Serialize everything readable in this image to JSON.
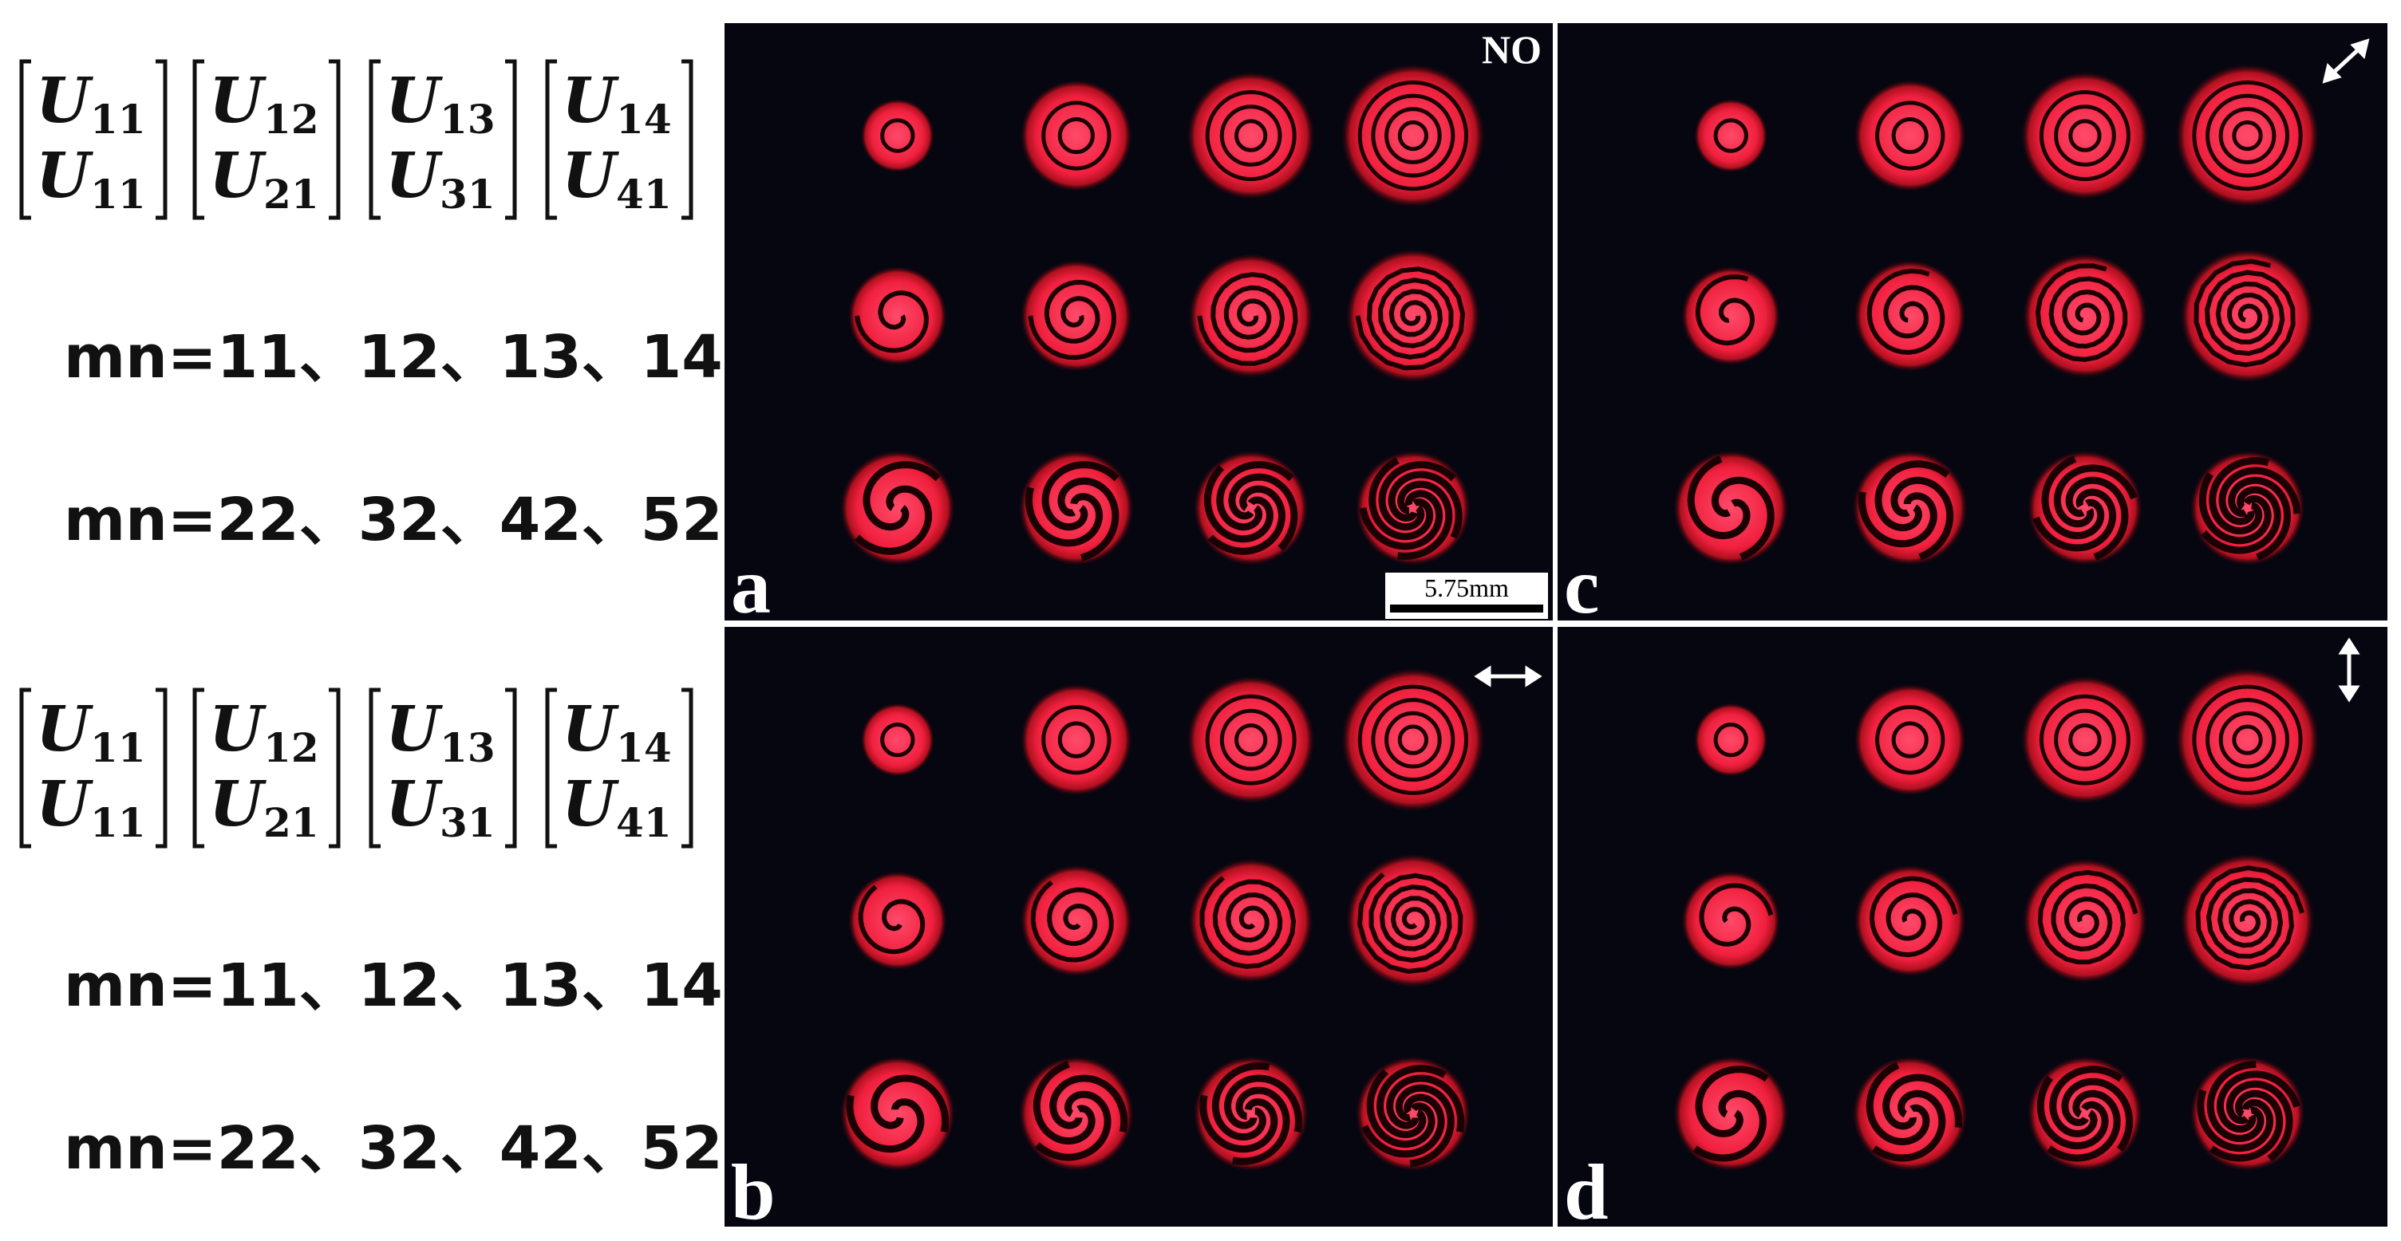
{
  "legend_groups": [
    {
      "matrices": [
        {
          "symbol": "U",
          "top_index": "11",
          "bottom_index": "11"
        },
        {
          "symbol": "U",
          "top_index": "12",
          "bottom_index": "21"
        },
        {
          "symbol": "U",
          "top_index": "13",
          "bottom_index": "31"
        },
        {
          "symbol": "U",
          "top_index": "14",
          "bottom_index": "41"
        }
      ],
      "rows": [
        "mn=11、12、13、14",
        "mn=22、32、42、52"
      ]
    },
    {
      "matrices": [
        {
          "symbol": "U",
          "top_index": "11",
          "bottom_index": "11"
        },
        {
          "symbol": "U",
          "top_index": "12",
          "bottom_index": "21"
        },
        {
          "symbol": "U",
          "top_index": "13",
          "bottom_index": "31"
        },
        {
          "symbol": "U",
          "top_index": "14",
          "bottom_index": "41"
        }
      ],
      "rows": [
        "mn=11、12、13、14",
        "mn=22、32、42、52"
      ]
    }
  ],
  "panels": [
    {
      "label": "a",
      "annotation": "NO",
      "scale_bar": "5.75mm"
    },
    {
      "label": "b"
    },
    {
      "label": "c"
    },
    {
      "label": "d"
    }
  ]
}
